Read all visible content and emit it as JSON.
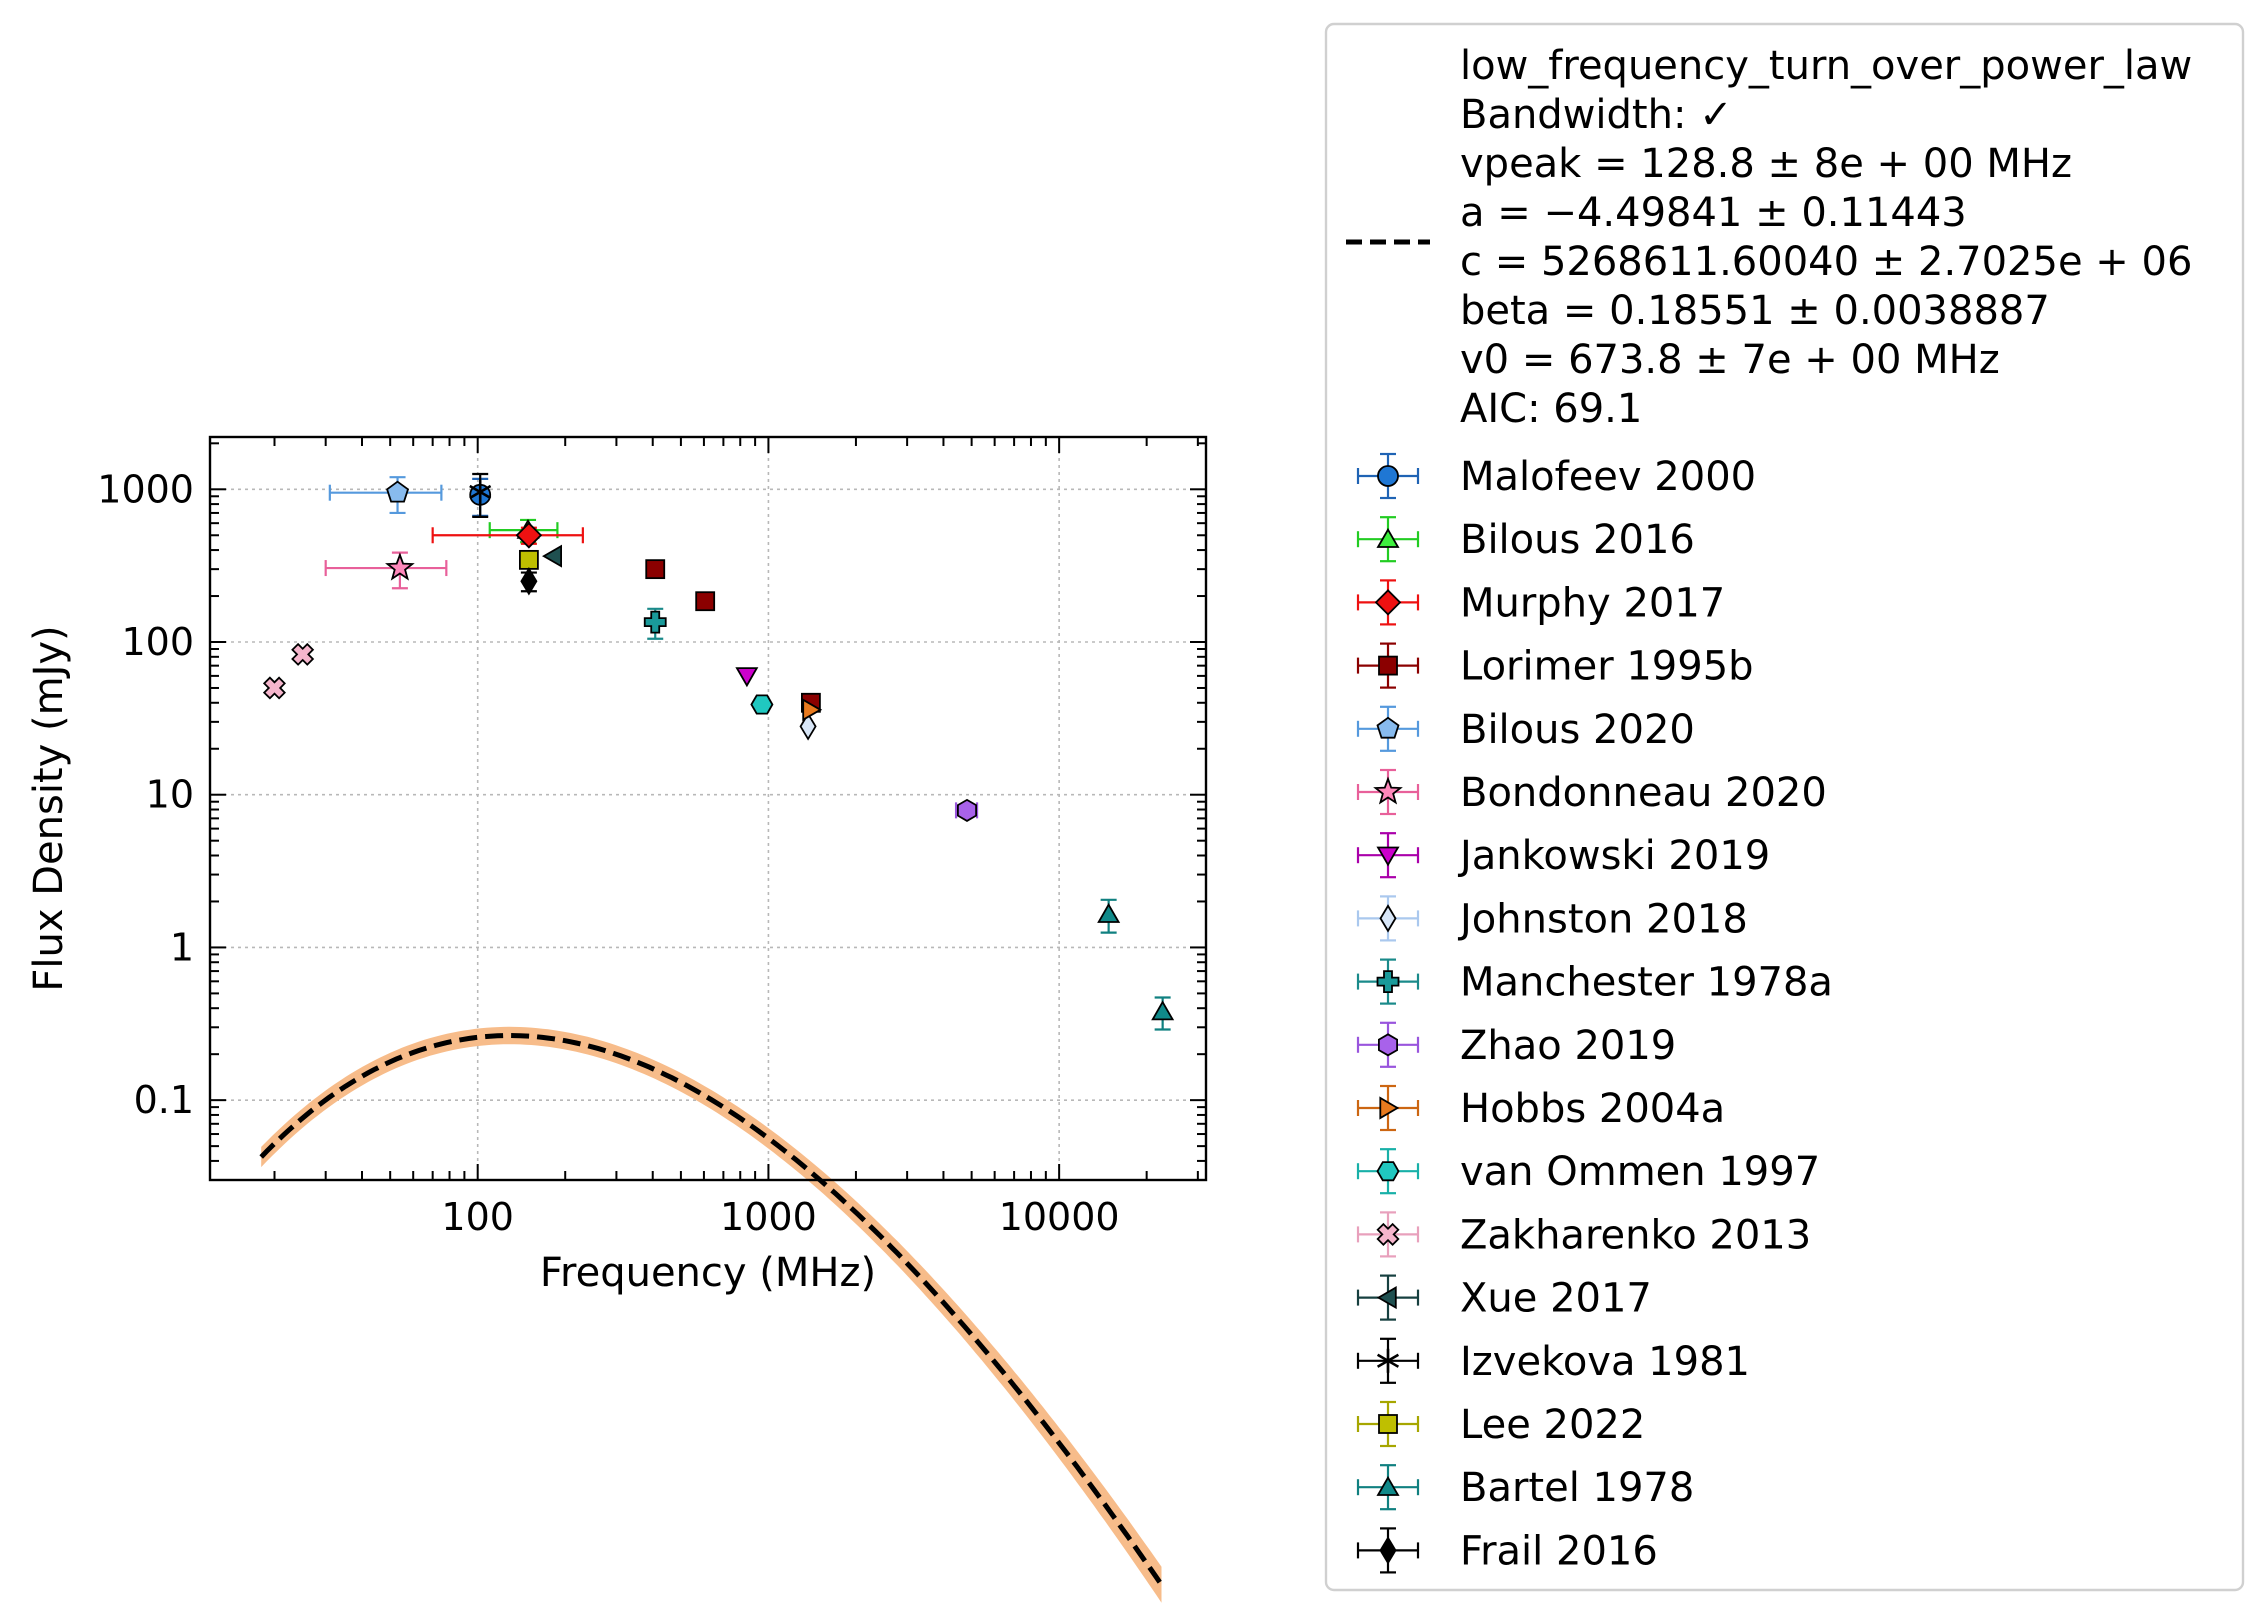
{
  "chart_data": {
    "type": "scatter",
    "title": "",
    "xlabel": "Frequency (MHz)",
    "ylabel": "Flux Density (mJy)",
    "xscale": "log",
    "yscale": "log",
    "xlim": [
      12,
      32000
    ],
    "ylim": [
      0.03,
      2200
    ],
    "grid": true,
    "legend_position": "outside-right",
    "x_ticks": [
      {
        "value": 100,
        "label": "100"
      },
      {
        "value": 1000,
        "label": "1000"
      },
      {
        "value": 10000,
        "label": "10000"
      }
    ],
    "y_ticks": [
      {
        "value": 0.1,
        "label": "0.1"
      },
      {
        "value": 1,
        "label": "1"
      },
      {
        "value": 10,
        "label": "10"
      },
      {
        "value": 100,
        "label": "100"
      },
      {
        "value": 1000,
        "label": "1000"
      }
    ],
    "fit": {
      "lines": [
        "low_frequency_turn_over_power_law",
        "Bandwidth: ✓",
        "vpeak = 128.8 ± 8e + 00 MHz",
        "a = −4.49841 ± 0.11443",
        "c = 5268611.60040 ± 2.7025e + 06",
        "beta = 0.18551 ± 0.0038887",
        "v0 = 673.8 ± 7e + 00 MHz",
        "AIC: 69.1"
      ],
      "model": "low_frequency_turn_over_power_law",
      "vpeak": 128.8,
      "a": -4.49841,
      "c": 5268611.6004,
      "beta": 0.18551,
      "v0": 673.8,
      "x_range": [
        18,
        22500
      ],
      "line_color": "#000000",
      "band_color": "#f7bc8a"
    },
    "series": [
      {
        "name": "Malofeev 2000",
        "marker": "circle",
        "color": "#1f77d4",
        "ecolor": "#1f63b4",
        "points": [
          {
            "x": 102,
            "y": 920,
            "yerr": [
              250,
              250
            ]
          }
        ]
      },
      {
        "name": "Bilous 2016",
        "marker": "triangle-up",
        "color": "#3ef03e",
        "ecolor": "#22cc22",
        "points": [
          {
            "x": 149,
            "y": 540,
            "xerr": [
              39,
              39
            ],
            "yerr": [
              90,
              90
            ]
          }
        ]
      },
      {
        "name": "Murphy 2017",
        "marker": "diamond",
        "color": "#ee1111",
        "ecolor": "#ee1111",
        "points": [
          {
            "x": 150,
            "y": 500,
            "xerr": [
              80,
              80
            ],
            "yerr": [
              60,
              60
            ]
          }
        ]
      },
      {
        "name": "Lorimer 1995b",
        "marker": "square",
        "color": "#8b0000",
        "ecolor": "#8b0000",
        "points": [
          {
            "x": 408,
            "y": 300
          },
          {
            "x": 606,
            "y": 185
          },
          {
            "x": 1400,
            "y": 40
          }
        ]
      },
      {
        "name": "Bilous 2020",
        "marker": "pentagon",
        "color": "#88bbee",
        "ecolor": "#5599dd",
        "points": [
          {
            "x": 53,
            "y": 950,
            "xerr": [
              22,
              22
            ],
            "yerr": [
              250,
              250
            ]
          }
        ]
      },
      {
        "name": "Bondonneau 2020",
        "marker": "star",
        "color": "#ff88bb",
        "ecolor": "#e8609a",
        "points": [
          {
            "x": 54,
            "y": 305,
            "xerr": [
              24,
              24
            ],
            "yerr": [
              80,
              80
            ]
          }
        ]
      },
      {
        "name": "Jankowski 2019",
        "marker": "triangle-down",
        "color": "#cc00cc",
        "ecolor": "#aa00aa",
        "points": [
          {
            "x": 843,
            "y": 60
          }
        ]
      },
      {
        "name": "Johnston 2018",
        "marker": "thin-diamond",
        "color": "#d8e6f7",
        "ecolor": "#aac8ee",
        "points": [
          {
            "x": 1369,
            "y": 28
          }
        ]
      },
      {
        "name": "Manchester 1978a",
        "marker": "plus-filled",
        "color": "#1a9a9a",
        "ecolor": "#1a8a8a",
        "points": [
          {
            "x": 408,
            "y": 135,
            "yerr": [
              30,
              30
            ]
          }
        ]
      },
      {
        "name": "Zhao 2019",
        "marker": "hexagon",
        "color": "#a862ea",
        "ecolor": "#9955dd",
        "points": [
          {
            "x": 4820,
            "y": 7.9,
            "xerr": [
              400,
              400
            ]
          }
        ]
      },
      {
        "name": "Hobbs 2004a",
        "marker": "triangle-right",
        "color": "#e87a1e",
        "ecolor": "#cc6612",
        "points": [
          {
            "x": 1400,
            "y": 36
          }
        ]
      },
      {
        "name": "van Ommen 1997",
        "marker": "octagon",
        "color": "#20c8c0",
        "ecolor": "#18b0a8",
        "points": [
          {
            "x": 950,
            "y": 39
          }
        ]
      },
      {
        "name": "Zakharenko 2013",
        "marker": "x-filled",
        "color": "#f5b5cc",
        "ecolor": "#e8a0bc",
        "points": [
          {
            "x": 20,
            "y": 50
          },
          {
            "x": 25,
            "y": 83
          }
        ]
      },
      {
        "name": "Xue 2017",
        "marker": "triangle-left",
        "color": "#1f5050",
        "ecolor": "#174040",
        "points": [
          {
            "x": 182,
            "y": 365
          }
        ]
      },
      {
        "name": "Izvekova 1981",
        "marker": "asterisk",
        "color": "#000000",
        "ecolor": "#000000",
        "points": [
          {
            "x": 102,
            "y": 960,
            "yerr": [
              300,
              300
            ]
          }
        ]
      },
      {
        "name": "Lee 2022",
        "marker": "square",
        "color": "#bfbf00",
        "ecolor": "#a6a600",
        "points": [
          {
            "x": 150,
            "y": 345
          }
        ]
      },
      {
        "name": "Bartel 1978",
        "marker": "triangle-up",
        "color": "#108a8a",
        "ecolor": "#108080",
        "points": [
          {
            "x": 14800,
            "y": 1.65,
            "yerr": [
              0.4,
              0.4
            ]
          },
          {
            "x": 22700,
            "y": 0.38,
            "yerr": [
              0.09,
              0.09
            ]
          }
        ]
      },
      {
        "name": "Frail 2016",
        "marker": "thin-diamond",
        "color": "#000000",
        "ecolor": "#000000",
        "points": [
          {
            "x": 150,
            "y": 250,
            "yerr": [
              35,
              35
            ]
          }
        ]
      }
    ]
  }
}
